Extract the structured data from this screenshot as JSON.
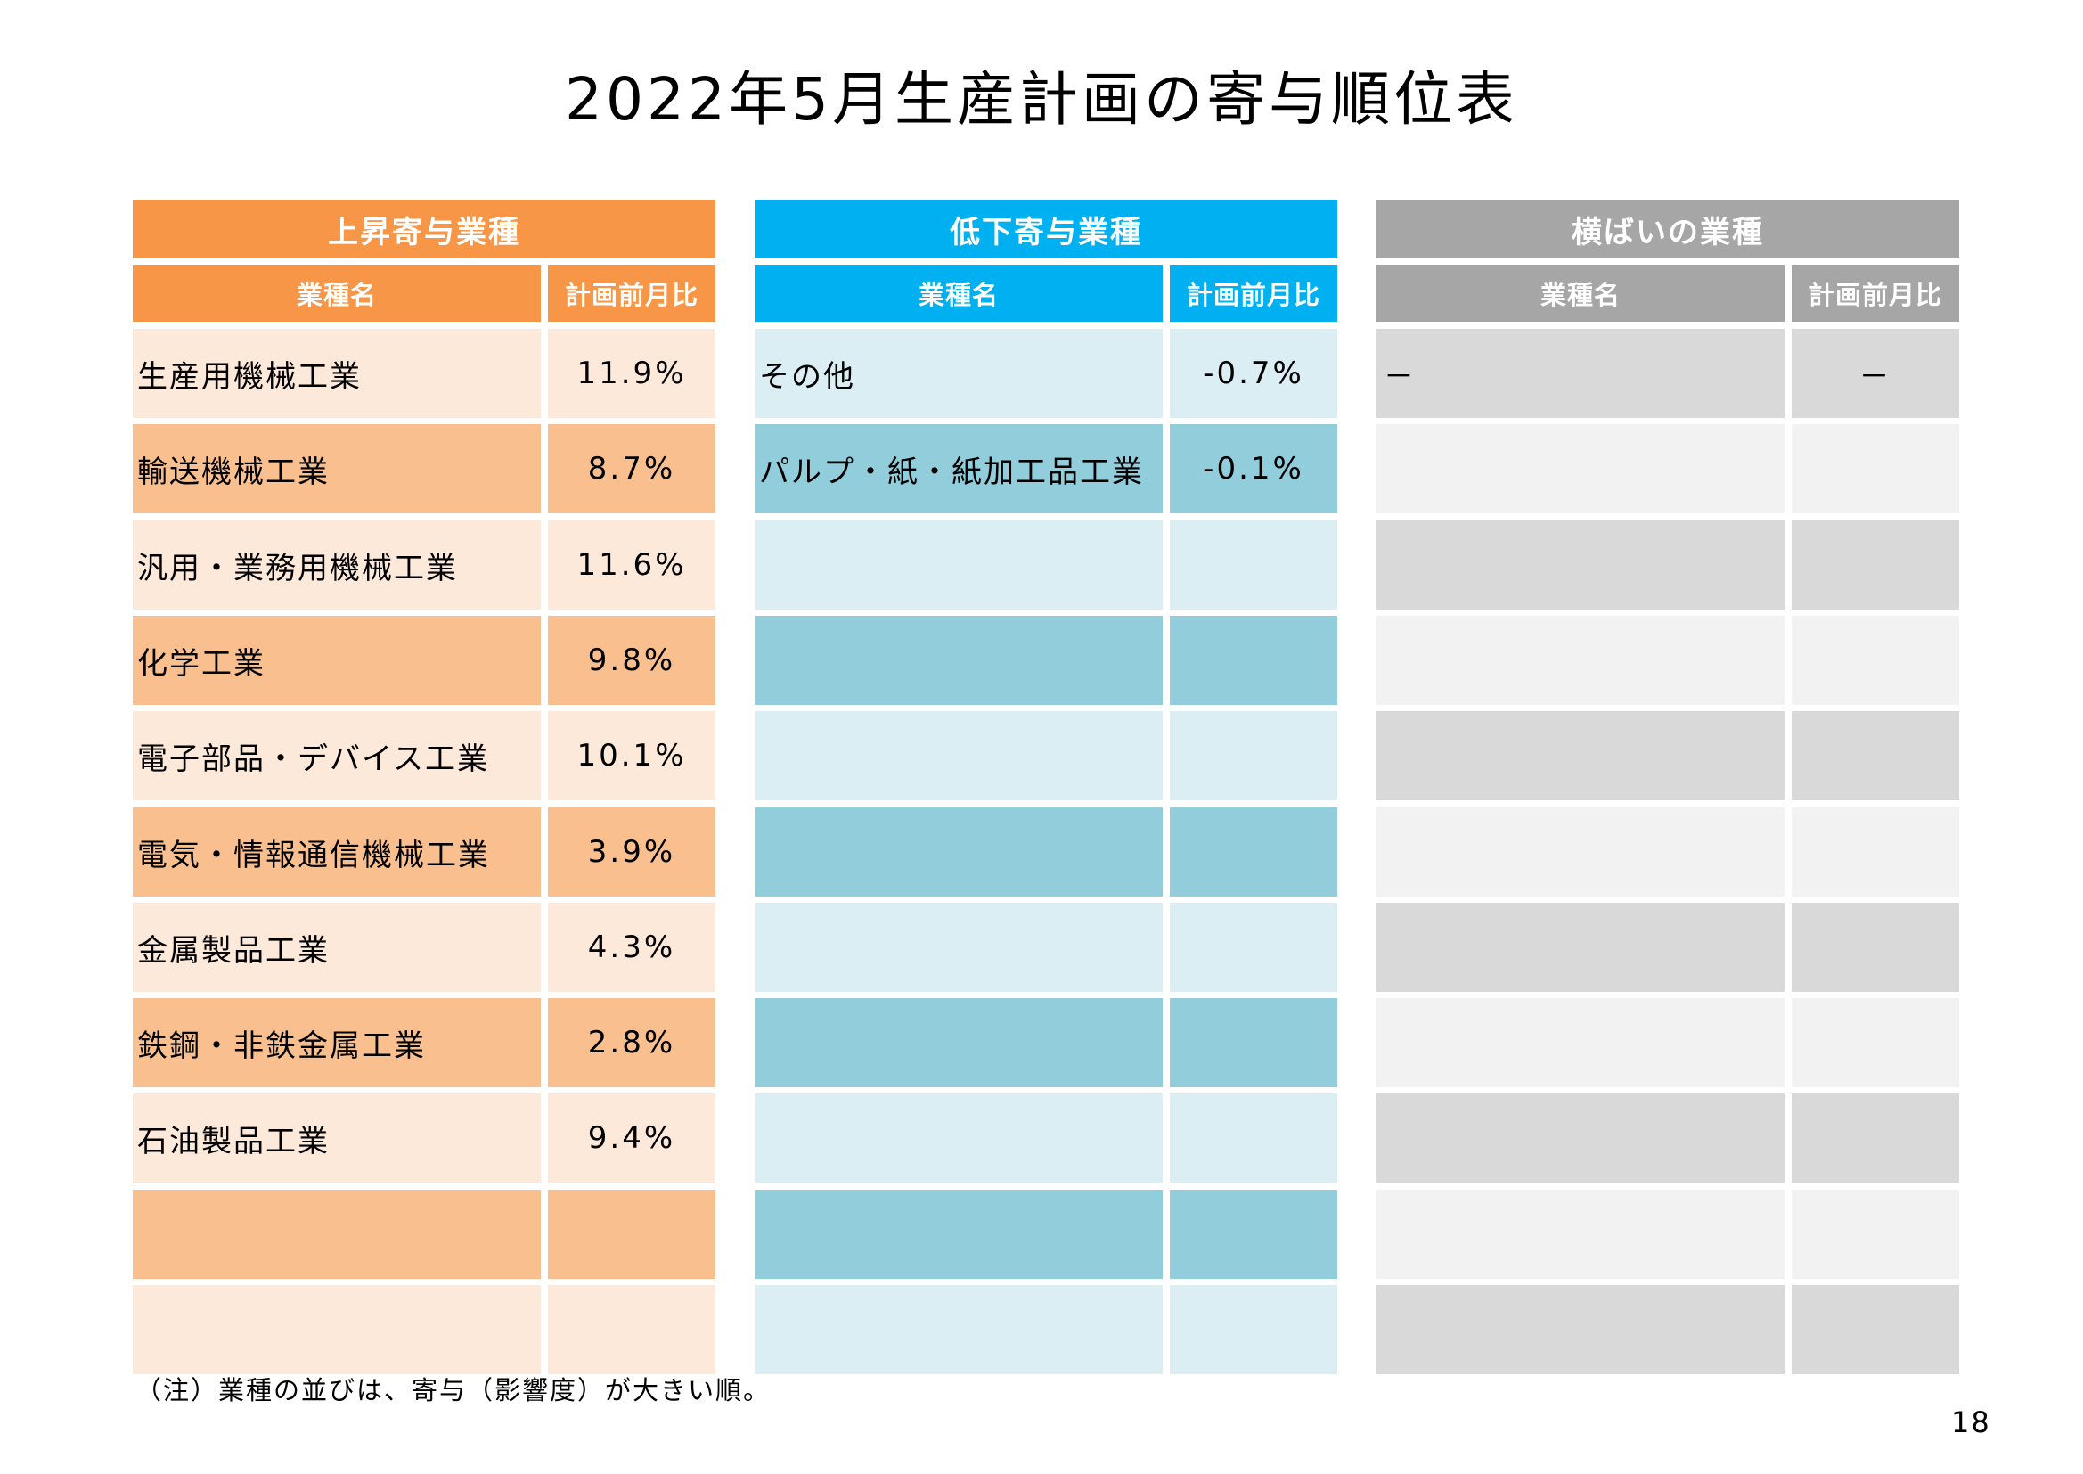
{
  "title": "2022年5月生産計画の寄与順位表",
  "columns": {
    "name": "業種名",
    "value": "計画前月比"
  },
  "colors": {
    "up": {
      "header": "#F79646",
      "light": "#FCE9DA",
      "dark": "#F9BF8F"
    },
    "down": {
      "header": "#00B0F0",
      "light": "#DAEEF3",
      "dark": "#92CDDC"
    },
    "flat": {
      "header": "#A6A6A6",
      "light": "#D9D9D9",
      "dark": "#F2F2F2"
    }
  },
  "panels": {
    "up": {
      "title": "上昇寄与業種",
      "rows": [
        {
          "name": "生産用機械工業",
          "value": "11.9%"
        },
        {
          "name": "輸送機械工業",
          "value": "8.7%"
        },
        {
          "name": "汎用・業務用機械工業",
          "value": "11.6%"
        },
        {
          "name": "化学工業",
          "value": "9.8%"
        },
        {
          "name": "電子部品・デバイス工業",
          "value": "10.1%"
        },
        {
          "name": "電気・情報通信機械工業",
          "value": "3.9%"
        },
        {
          "name": "金属製品工業",
          "value": "4.3%"
        },
        {
          "name": "鉄鋼・非鉄金属工業",
          "value": "2.8%"
        },
        {
          "name": "石油製品工業",
          "value": "9.4%"
        },
        {
          "name": "",
          "value": ""
        },
        {
          "name": "",
          "value": ""
        }
      ]
    },
    "down": {
      "title": "低下寄与業種",
      "rows": [
        {
          "name": "その他",
          "value": "-0.7%"
        },
        {
          "name": "パルプ・紙・紙加工品工業",
          "value": "-0.1%"
        },
        {
          "name": "",
          "value": ""
        },
        {
          "name": "",
          "value": ""
        },
        {
          "name": "",
          "value": ""
        },
        {
          "name": "",
          "value": ""
        },
        {
          "name": "",
          "value": ""
        },
        {
          "name": "",
          "value": ""
        },
        {
          "name": "",
          "value": ""
        },
        {
          "name": "",
          "value": ""
        },
        {
          "name": "",
          "value": ""
        }
      ]
    },
    "flat": {
      "title": "横ばいの業種",
      "rows": [
        {
          "name": "－",
          "value": "－"
        },
        {
          "name": "",
          "value": ""
        },
        {
          "name": "",
          "value": ""
        },
        {
          "name": "",
          "value": ""
        },
        {
          "name": "",
          "value": ""
        },
        {
          "name": "",
          "value": ""
        },
        {
          "name": "",
          "value": ""
        },
        {
          "name": "",
          "value": ""
        },
        {
          "name": "",
          "value": ""
        },
        {
          "name": "",
          "value": ""
        },
        {
          "name": "",
          "value": ""
        }
      ]
    }
  },
  "note": "（注）業種の並びは、寄与（影響度）が大きい順。",
  "page_number": "18"
}
